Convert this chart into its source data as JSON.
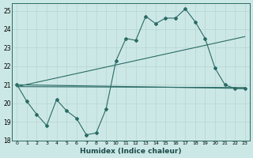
{
  "xlabel": "Humidex (Indice chaleur)",
  "xlim": [
    -0.5,
    23.5
  ],
  "ylim": [
    18,
    25.4
  ],
  "xticks": [
    0,
    1,
    2,
    3,
    4,
    5,
    6,
    7,
    8,
    9,
    10,
    11,
    12,
    13,
    14,
    15,
    16,
    17,
    18,
    19,
    20,
    21,
    22,
    23
  ],
  "yticks": [
    18,
    19,
    20,
    21,
    22,
    23,
    24,
    25
  ],
  "bg_color": "#cce8e6",
  "grid_color": "#b8d4d2",
  "line_color": "#2a6b65",
  "line1_x": [
    0,
    1,
    2,
    3,
    4,
    5,
    6,
    7,
    8,
    9,
    10,
    11,
    12,
    13,
    14,
    15,
    16,
    17,
    18,
    19,
    20,
    21,
    22,
    23
  ],
  "line1_y": [
    21.0,
    20.1,
    19.4,
    18.8,
    20.2,
    19.6,
    19.2,
    18.3,
    18.4,
    19.7,
    22.3,
    23.5,
    23.4,
    24.7,
    24.3,
    24.6,
    24.6,
    25.1,
    24.4,
    23.5,
    21.9,
    21.0,
    20.8,
    20.8
  ],
  "line2_x": [
    0,
    23
  ],
  "line2_y": [
    20.9,
    20.85
  ],
  "line3_x": [
    0,
    23
  ],
  "line3_y": [
    20.9,
    23.6
  ],
  "line4_x": [
    0,
    23
  ],
  "line4_y": [
    21.0,
    20.8
  ]
}
